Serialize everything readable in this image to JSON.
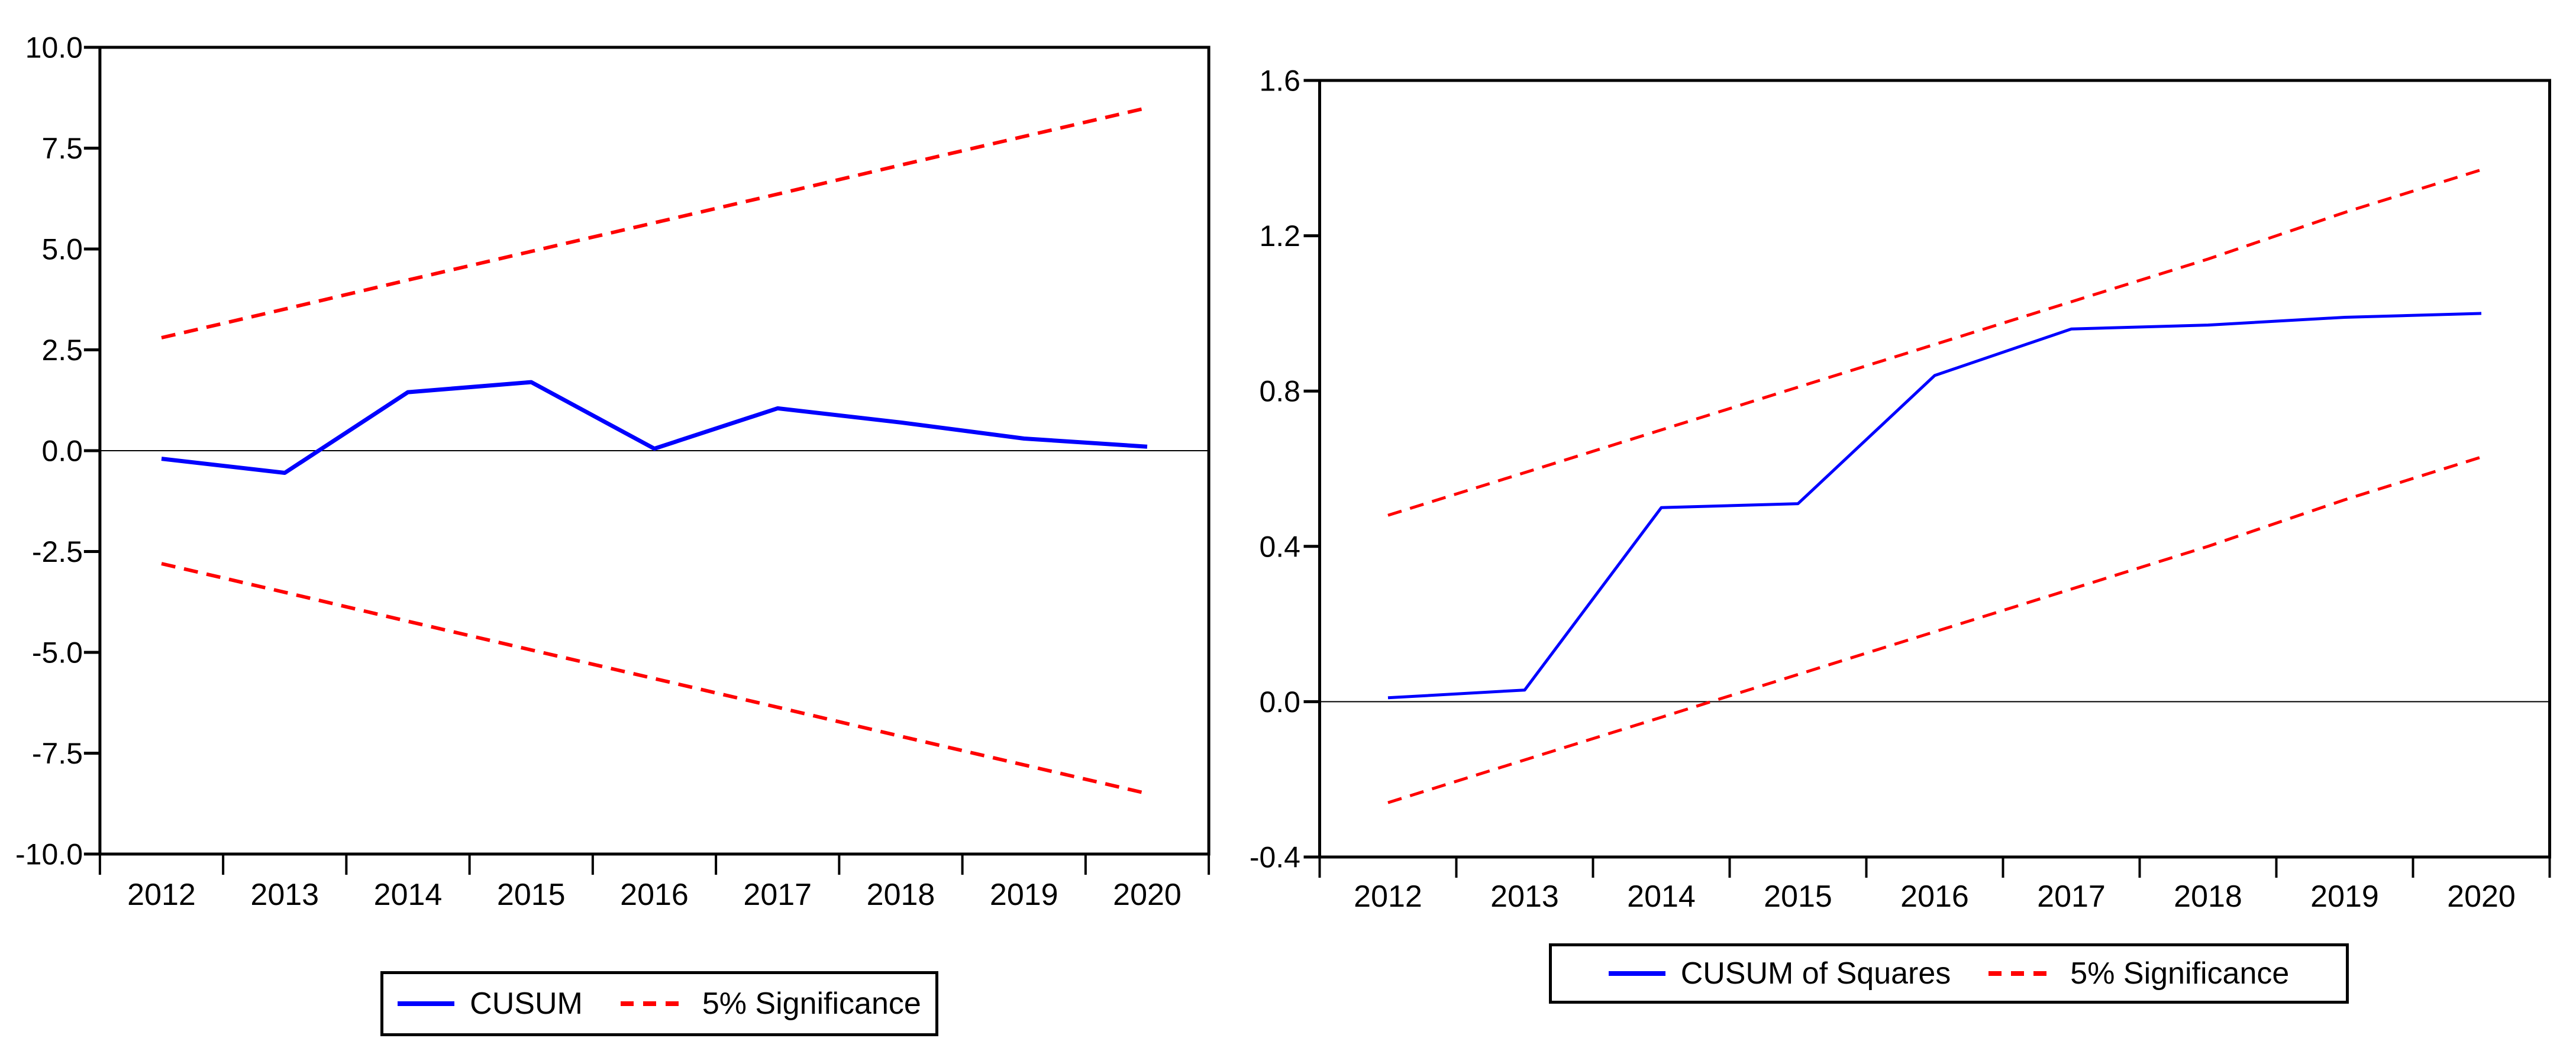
{
  "figure": {
    "background": "#ffffff",
    "description": "CUSUM and CUSUM of Squares recursive stability test plots with 5% significance bounds"
  },
  "colors": {
    "series_line": "#0000fe",
    "significance_line": "#ff0000",
    "axis": "#000000",
    "zero_line": "#000000",
    "text": "#000000"
  },
  "chart_data": [
    {
      "id": "cusum",
      "type": "line",
      "title": "",
      "xlabel": "",
      "ylabel": "",
      "categories": [
        "2012",
        "2013",
        "2014",
        "2015",
        "2016",
        "2017",
        "2018",
        "2019",
        "2020"
      ],
      "ylim": [
        -10,
        10
      ],
      "yticks": {
        "values": [
          10,
          7.5,
          5,
          2.5,
          0,
          -2.5,
          -5,
          -7.5,
          -10
        ],
        "labels": [
          "10.0",
          "7.5",
          "5.0",
          "2.5",
          "0.0",
          "-2.5",
          "-5.0",
          "-7.5",
          "-10.0"
        ]
      },
      "zero_line": true,
      "grid": false,
      "series": [
        {
          "name": "CUSUM",
          "style": "solid",
          "color": "#0000fe",
          "values": [
            -0.2,
            -0.55,
            1.45,
            1.7,
            0.05,
            1.05,
            0.7,
            0.3,
            0.1
          ]
        },
        {
          "name": "5% Significance (upper bound)",
          "style": "dashed",
          "color": "#ff0000",
          "values": [
            2.8,
            3.51,
            4.23,
            4.94,
            5.65,
            6.36,
            7.08,
            7.79,
            8.5
          ]
        },
        {
          "name": "5% Significance (lower bound)",
          "style": "dashed",
          "color": "#ff0000",
          "values": [
            -2.8,
            -3.51,
            -4.23,
            -4.94,
            -5.65,
            -6.36,
            -7.08,
            -7.79,
            -8.5
          ]
        }
      ],
      "legend": {
        "position": "bottom",
        "items": [
          {
            "label": "CUSUM",
            "style": "solid",
            "color": "#0000fe"
          },
          {
            "label": "5% Significance",
            "style": "dashed",
            "color": "#ff0000"
          }
        ]
      }
    },
    {
      "id": "cusum-of-squares",
      "type": "line",
      "title": "",
      "xlabel": "",
      "ylabel": "",
      "categories": [
        "2012",
        "2013",
        "2014",
        "2015",
        "2016",
        "2017",
        "2018",
        "2019",
        "2020"
      ],
      "ylim": [
        -0.4,
        1.6
      ],
      "yticks": {
        "values": [
          1.6,
          1.2,
          0.8,
          0.4,
          0,
          -0.4
        ],
        "labels": [
          "1.6",
          "1.2",
          "0.8",
          "0.4",
          "0.0",
          "-0.4"
        ]
      },
      "zero_line": true,
      "grid": false,
      "series": [
        {
          "name": "CUSUM of Squares",
          "style": "solid",
          "color": "#0000fe",
          "values": [
            0.01,
            0.03,
            0.5,
            0.51,
            0.84,
            0.96,
            0.97,
            0.99,
            1.0
          ]
        },
        {
          "name": "5% Significance (upper bound)",
          "style": "dashed",
          "color": "#ff0000",
          "values": [
            0.48,
            0.59,
            0.7,
            0.81,
            0.92,
            1.03,
            1.14,
            1.26,
            1.37
          ]
        },
        {
          "name": "5% Significance (lower bound)",
          "style": "dashed",
          "color": "#ff0000",
          "values": [
            -0.26,
            -0.15,
            -0.04,
            0.07,
            0.18,
            0.29,
            0.4,
            0.52,
            0.63
          ]
        }
      ],
      "legend": {
        "position": "bottom",
        "items": [
          {
            "label": "CUSUM of Squares",
            "style": "solid",
            "color": "#0000fe"
          },
          {
            "label": "5% Significance",
            "style": "dashed",
            "color": "#ff0000"
          }
        ]
      }
    }
  ]
}
